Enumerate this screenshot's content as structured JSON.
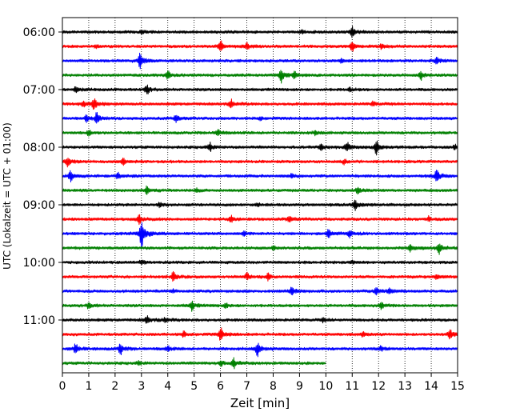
{
  "chart_data": {
    "type": "line",
    "title": "",
    "xlabel": "Zeit  [min]",
    "ylabel": "UTC (Lokalzeit = UTC + 01:00)",
    "xlim": [
      0,
      15
    ],
    "x_ticks": [
      "0",
      "1",
      "2",
      "3",
      "4",
      "5",
      "6",
      "7",
      "8",
      "9",
      "10",
      "11",
      "12",
      "13",
      "14",
      "15"
    ],
    "y_ticks": [
      "06:00",
      "07:00",
      "08:00",
      "09:00",
      "10:00",
      "11:00"
    ],
    "grid": "vertical dotted lines at each minute",
    "row_interval_min": 15,
    "first_row": "06:00",
    "trace_colors": [
      "#000000",
      "#ff0000",
      "#0000ff",
      "#008000"
    ],
    "last_row_end_min": 10,
    "rows": [
      {
        "time": "06:00",
        "events": [
          [
            11.0,
            1.0
          ],
          [
            3.0,
            0.3
          ],
          [
            9.1,
            0.3
          ]
        ]
      },
      {
        "time": "06:15",
        "events": [
          [
            6.0,
            1.0
          ],
          [
            7.0,
            0.6
          ],
          [
            11.0,
            0.8
          ],
          [
            12.1,
            0.4
          ],
          [
            1.3,
            0.3
          ]
        ]
      },
      {
        "time": "06:30",
        "events": [
          [
            2.95,
            1.5
          ],
          [
            14.2,
            0.7
          ],
          [
            10.6,
            0.4
          ]
        ]
      },
      {
        "time": "06:45",
        "events": [
          [
            4.0,
            0.8
          ],
          [
            8.3,
            1.3
          ],
          [
            8.8,
            0.6
          ],
          [
            13.6,
            0.8
          ]
        ]
      },
      {
        "time": "07:00",
        "events": [
          [
            0.5,
            0.5
          ],
          [
            3.2,
            0.9
          ],
          [
            10.9,
            0.3
          ]
        ]
      },
      {
        "time": "07:15",
        "events": [
          [
            1.2,
            1.2
          ],
          [
            0.8,
            0.6
          ],
          [
            6.4,
            0.7
          ],
          [
            11.8,
            0.4
          ]
        ]
      },
      {
        "time": "07:30",
        "events": [
          [
            1.3,
            1.0
          ],
          [
            0.9,
            0.5
          ],
          [
            4.3,
            0.7
          ],
          [
            7.5,
            0.3
          ]
        ]
      },
      {
        "time": "07:45",
        "events": [
          [
            1.0,
            0.5
          ],
          [
            5.9,
            0.6
          ],
          [
            9.6,
            0.4
          ]
        ]
      },
      {
        "time": "08:00",
        "events": [
          [
            11.9,
            1.3
          ],
          [
            10.8,
            0.9
          ],
          [
            5.6,
            0.7
          ],
          [
            9.8,
            0.5
          ],
          [
            14.9,
            0.4
          ]
        ]
      },
      {
        "time": "08:15",
        "events": [
          [
            0.2,
            0.9
          ],
          [
            2.3,
            0.6
          ],
          [
            10.7,
            0.4
          ]
        ]
      },
      {
        "time": "08:30",
        "events": [
          [
            0.3,
            1.0
          ],
          [
            14.2,
            1.2
          ],
          [
            2.1,
            0.6
          ],
          [
            8.7,
            0.3
          ]
        ]
      },
      {
        "time": "08:45",
        "events": [
          [
            3.2,
            0.7
          ],
          [
            11.2,
            0.5
          ],
          [
            5.1,
            0.3
          ]
        ]
      },
      {
        "time": "09:00",
        "events": [
          [
            11.1,
            1.0
          ],
          [
            3.7,
            0.5
          ],
          [
            7.4,
            0.3
          ]
        ]
      },
      {
        "time": "09:15",
        "events": [
          [
            2.9,
            0.8
          ],
          [
            6.4,
            0.6
          ],
          [
            8.6,
            0.7
          ],
          [
            13.9,
            0.4
          ]
        ]
      },
      {
        "time": "09:30",
        "events": [
          [
            3.0,
            3.2
          ],
          [
            10.1,
            0.7
          ],
          [
            10.9,
            0.6
          ],
          [
            6.9,
            0.4
          ]
        ]
      },
      {
        "time": "09:45",
        "events": [
          [
            14.3,
            1.1
          ],
          [
            13.2,
            0.7
          ],
          [
            8.0,
            0.3
          ]
        ]
      },
      {
        "time": "10:00",
        "events": [
          [
            3.0,
            0.4
          ],
          [
            11.0,
            0.3
          ]
        ]
      },
      {
        "time": "10:15",
        "events": [
          [
            4.2,
            0.8
          ],
          [
            7.0,
            0.6
          ],
          [
            7.8,
            0.6
          ],
          [
            14.2,
            0.5
          ]
        ]
      },
      {
        "time": "10:30",
        "events": [
          [
            8.7,
            1.0
          ],
          [
            11.9,
            0.8
          ],
          [
            12.4,
            0.6
          ],
          [
            4.2,
            0.3
          ]
        ]
      },
      {
        "time": "10:45",
        "events": [
          [
            1.0,
            0.6
          ],
          [
            4.9,
            0.9
          ],
          [
            12.1,
            0.6
          ],
          [
            6.2,
            0.4
          ]
        ]
      },
      {
        "time": "11:00",
        "events": [
          [
            3.2,
            0.7
          ],
          [
            3.9,
            0.4
          ],
          [
            9.9,
            0.3
          ]
        ]
      },
      {
        "time": "11:15",
        "events": [
          [
            6.0,
            1.2
          ],
          [
            14.7,
            1.0
          ],
          [
            4.6,
            0.5
          ],
          [
            11.4,
            0.4
          ]
        ]
      },
      {
        "time": "11:30",
        "events": [
          [
            0.5,
            1.0
          ],
          [
            2.2,
            1.0
          ],
          [
            7.4,
            1.3
          ],
          [
            4.0,
            0.5
          ],
          [
            12.1,
            0.5
          ]
        ]
      },
      {
        "time": "11:45",
        "events": [
          [
            6.5,
            0.8
          ],
          [
            6.0,
            0.5
          ],
          [
            2.9,
            0.3
          ]
        ]
      }
    ]
  }
}
